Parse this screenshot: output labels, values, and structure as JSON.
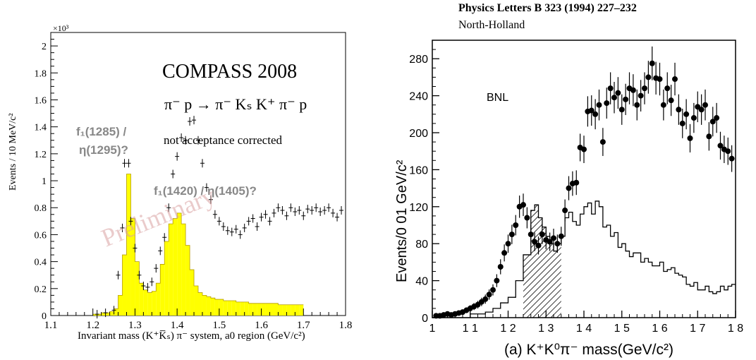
{
  "chart_data": [
    {
      "type": "bar",
      "title": "COMPASS 2008",
      "reaction": "π⁻ p → π⁻ Kₛ K⁺ π⁻ p",
      "note": "not acceptance corrected",
      "watermark": "Preliminary",
      "xlabel": "Invariant mass (K⁺K̅ₛ) π⁻ system, a0 region (GeV/c²)",
      "ylabel": "Events / 10 MeV/c²",
      "yexponent": "×10³",
      "xlim": [
        1.1,
        1.8
      ],
      "ylim": [
        0,
        2.1
      ],
      "xticks": [
        "1.1",
        "1.2",
        "1.3",
        "1.4",
        "1.5",
        "1.6",
        "1.7",
        "1.8"
      ],
      "yticks": [
        "0",
        "0.2",
        "0.4",
        "0.6",
        "0.8",
        "1",
        "1.2",
        "1.4",
        "1.6",
        "1.8",
        "2"
      ],
      "annotations": [
        {
          "lines": [
            "f₁(1285) /",
            "η(1295)?"
          ]
        },
        {
          "lines": [
            "f₁(1420) / η(1405)?"
          ]
        }
      ],
      "series": [
        {
          "kind": "histogram",
          "color": "#ffff00",
          "bin_width": 0.01,
          "x_start": 1.2,
          "values": [
            0.01,
            0.01,
            0.02,
            0.02,
            0.03,
            0.05,
            0.15,
            0.45,
            1.05,
            0.72,
            0.4,
            0.24,
            0.19,
            0.17,
            0.18,
            0.24,
            0.38,
            0.55,
            0.68,
            0.72,
            0.76,
            0.68,
            0.52,
            0.34,
            0.22,
            0.17,
            0.15,
            0.14,
            0.13,
            0.12,
            0.12,
            0.11,
            0.11,
            0.11,
            0.1,
            0.1,
            0.1,
            0.09,
            0.09,
            0.09,
            0.09,
            0.09,
            0.09,
            0.09,
            0.08,
            0.08,
            0.08,
            0.08,
            0.08,
            0.08
          ]
        },
        {
          "kind": "points",
          "points": [
            [
              1.21,
              0.01
            ],
            [
              1.23,
              0.02
            ],
            [
              1.25,
              0.04
            ],
            [
              1.26,
              0.3
            ],
            [
              1.27,
              0.65
            ],
            [
              1.275,
              1.13
            ],
            [
              1.285,
              1.13
            ],
            [
              1.29,
              0.7
            ],
            [
              1.3,
              0.5
            ],
            [
              1.31,
              0.3
            ],
            [
              1.32,
              0.22
            ],
            [
              1.33,
              0.21
            ],
            [
              1.34,
              0.25
            ],
            [
              1.35,
              0.35
            ],
            [
              1.36,
              0.48
            ],
            [
              1.37,
              0.58
            ],
            [
              1.38,
              0.8
            ],
            [
              1.39,
              1.05
            ],
            [
              1.4,
              1.18
            ],
            [
              1.41,
              1.32
            ],
            [
              1.42,
              1.3
            ],
            [
              1.43,
              1.44
            ],
            [
              1.44,
              1.45
            ],
            [
              1.45,
              1.3
            ],
            [
              1.46,
              1.13
            ],
            [
              1.47,
              0.95
            ],
            [
              1.48,
              0.86
            ],
            [
              1.49,
              0.75
            ],
            [
              1.5,
              0.7
            ],
            [
              1.51,
              0.66
            ],
            [
              1.52,
              0.63
            ],
            [
              1.53,
              0.62
            ],
            [
              1.54,
              0.64
            ],
            [
              1.55,
              0.6
            ],
            [
              1.56,
              0.65
            ],
            [
              1.57,
              0.7
            ],
            [
              1.58,
              0.72
            ],
            [
              1.59,
              0.66
            ],
            [
              1.6,
              0.73
            ],
            [
              1.61,
              0.75
            ],
            [
              1.62,
              0.7
            ],
            [
              1.63,
              0.76
            ],
            [
              1.64,
              0.8
            ],
            [
              1.65,
              0.78
            ],
            [
              1.66,
              0.74
            ],
            [
              1.67,
              0.8
            ],
            [
              1.68,
              0.77
            ],
            [
              1.69,
              0.78
            ],
            [
              1.7,
              0.74
            ],
            [
              1.71,
              0.79
            ],
            [
              1.72,
              0.78
            ],
            [
              1.73,
              0.8
            ],
            [
              1.74,
              0.77
            ],
            [
              1.75,
              0.78
            ],
            [
              1.76,
              0.8
            ],
            [
              1.77,
              0.76
            ],
            [
              1.78,
              0.73
            ],
            [
              1.79,
              0.78
            ]
          ]
        }
      ]
    },
    {
      "type": "scatter",
      "header": [
        "Physics Letters B 323 (1994) 227–232",
        "North-Holland"
      ],
      "label": "BNL",
      "xlabel": "(a) K⁺K⁰π⁻ mass(GeV/c²)",
      "ylabel": "Events/0 01 GeV/c²",
      "xlim": [
        1.0,
        1.8
      ],
      "ylim": [
        0,
        300
      ],
      "xticks": [
        "1",
        "1 1",
        "1 2",
        "1 3",
        "1 4",
        "1 5",
        "1 6",
        "1 7",
        "1 8"
      ],
      "yticks": [
        "0",
        "40",
        "80",
        "120",
        "160",
        "200",
        "240",
        "280"
      ],
      "series": [
        {
          "kind": "points",
          "points": [
            [
              1.01,
              2
            ],
            [
              1.02,
              2
            ],
            [
              1.03,
              3
            ],
            [
              1.04,
              4
            ],
            [
              1.05,
              3
            ],
            [
              1.06,
              4
            ],
            [
              1.07,
              5
            ],
            [
              1.08,
              6
            ],
            [
              1.09,
              8
            ],
            [
              1.1,
              10
            ],
            [
              1.11,
              12
            ],
            [
              1.12,
              14
            ],
            [
              1.13,
              17
            ],
            [
              1.14,
              20
            ],
            [
              1.15,
              25
            ],
            [
              1.16,
              30
            ],
            [
              1.17,
              40
            ],
            [
              1.18,
              55
            ],
            [
              1.19,
              70
            ],
            [
              1.2,
              80
            ],
            [
              1.21,
              90
            ],
            [
              1.22,
              100
            ],
            [
              1.23,
              120
            ],
            [
              1.24,
              122
            ],
            [
              1.25,
              108
            ],
            [
              1.26,
              90
            ],
            [
              1.27,
              82
            ],
            [
              1.28,
              78
            ],
            [
              1.29,
              90
            ],
            [
              1.3,
              84
            ],
            [
              1.31,
              82
            ],
            [
              1.32,
              86
            ],
            [
              1.33,
              80
            ],
            [
              1.34,
              88
            ],
            [
              1.35,
              116
            ],
            [
              1.36,
              140
            ],
            [
              1.37,
              145
            ],
            [
              1.38,
              146
            ],
            [
              1.39,
              184
            ],
            [
              1.4,
              182
            ],
            [
              1.41,
              223
            ],
            [
              1.42,
              224
            ],
            [
              1.43,
              220
            ],
            [
              1.44,
              230
            ],
            [
              1.45,
              190
            ],
            [
              1.46,
              232
            ],
            [
              1.47,
              248
            ],
            [
              1.48,
              238
            ],
            [
              1.49,
              243
            ],
            [
              1.5,
              225
            ],
            [
              1.51,
              236
            ],
            [
              1.52,
              248
            ],
            [
              1.53,
              246
            ],
            [
              1.54,
              230
            ],
            [
              1.55,
              240
            ],
            [
              1.56,
              248
            ],
            [
              1.57,
              260
            ],
            [
              1.58,
              275
            ],
            [
              1.59,
              259
            ],
            [
              1.6,
              258
            ],
            [
              1.61,
              230
            ],
            [
              1.62,
              248
            ],
            [
              1.63,
              235
            ],
            [
              1.64,
              258
            ],
            [
              1.65,
              225
            ],
            [
              1.66,
              210
            ],
            [
              1.67,
              220
            ],
            [
              1.68,
              194
            ],
            [
              1.69,
              216
            ],
            [
              1.7,
              228
            ],
            [
              1.71,
              225
            ],
            [
              1.72,
              230
            ],
            [
              1.73,
              196
            ],
            [
              1.74,
              212
            ],
            [
              1.75,
              216
            ],
            [
              1.76,
              186
            ],
            [
              1.77,
              182
            ],
            [
              1.78,
              180
            ],
            [
              1.79,
              172
            ]
          ]
        },
        {
          "kind": "histogram",
          "outline": true,
          "points": [
            [
              1.0,
              0
            ],
            [
              1.1,
              4
            ],
            [
              1.14,
              6
            ],
            [
              1.16,
              10
            ],
            [
              1.18,
              16
            ],
            [
              1.2,
              22
            ],
            [
              1.22,
              40
            ],
            [
              1.24,
              68
            ],
            [
              1.26,
              116
            ],
            [
              1.27,
              122
            ],
            [
              1.28,
              108
            ],
            [
              1.29,
              98
            ],
            [
              1.3,
              88
            ],
            [
              1.31,
              80
            ],
            [
              1.32,
              72
            ],
            [
              1.33,
              80
            ],
            [
              1.34,
              88
            ],
            [
              1.35,
              108
            ],
            [
              1.36,
              114
            ],
            [
              1.37,
              104
            ],
            [
              1.38,
              100
            ],
            [
              1.39,
              112
            ],
            [
              1.4,
              120
            ],
            [
              1.41,
              124
            ],
            [
              1.42,
              112
            ],
            [
              1.43,
              126
            ],
            [
              1.44,
              120
            ],
            [
              1.45,
              98
            ],
            [
              1.46,
              100
            ],
            [
              1.47,
              88
            ],
            [
              1.48,
              92
            ],
            [
              1.49,
              76
            ],
            [
              1.5,
              80
            ],
            [
              1.51,
              72
            ],
            [
              1.52,
              66
            ],
            [
              1.53,
              70
            ],
            [
              1.54,
              70
            ],
            [
              1.55,
              60
            ],
            [
              1.56,
              64
            ],
            [
              1.57,
              60
            ],
            [
              1.58,
              56
            ],
            [
              1.59,
              56
            ],
            [
              1.6,
              60
            ],
            [
              1.61,
              50
            ],
            [
              1.62,
              52
            ],
            [
              1.63,
              54
            ],
            [
              1.64,
              48
            ],
            [
              1.65,
              46
            ],
            [
              1.66,
              44
            ],
            [
              1.67,
              36
            ],
            [
              1.68,
              34
            ],
            [
              1.69,
              38
            ],
            [
              1.7,
              30
            ],
            [
              1.71,
              30
            ],
            [
              1.72,
              34
            ],
            [
              1.73,
              28
            ],
            [
              1.74,
              26
            ],
            [
              1.75,
              28
            ],
            [
              1.76,
              34
            ],
            [
              1.77,
              30
            ],
            [
              1.78,
              34
            ],
            [
              1.79,
              36
            ]
          ]
        },
        {
          "kind": "shaded",
          "pattern": "hatched",
          "xrange": [
            1.23,
            1.34
          ]
        }
      ]
    }
  ]
}
